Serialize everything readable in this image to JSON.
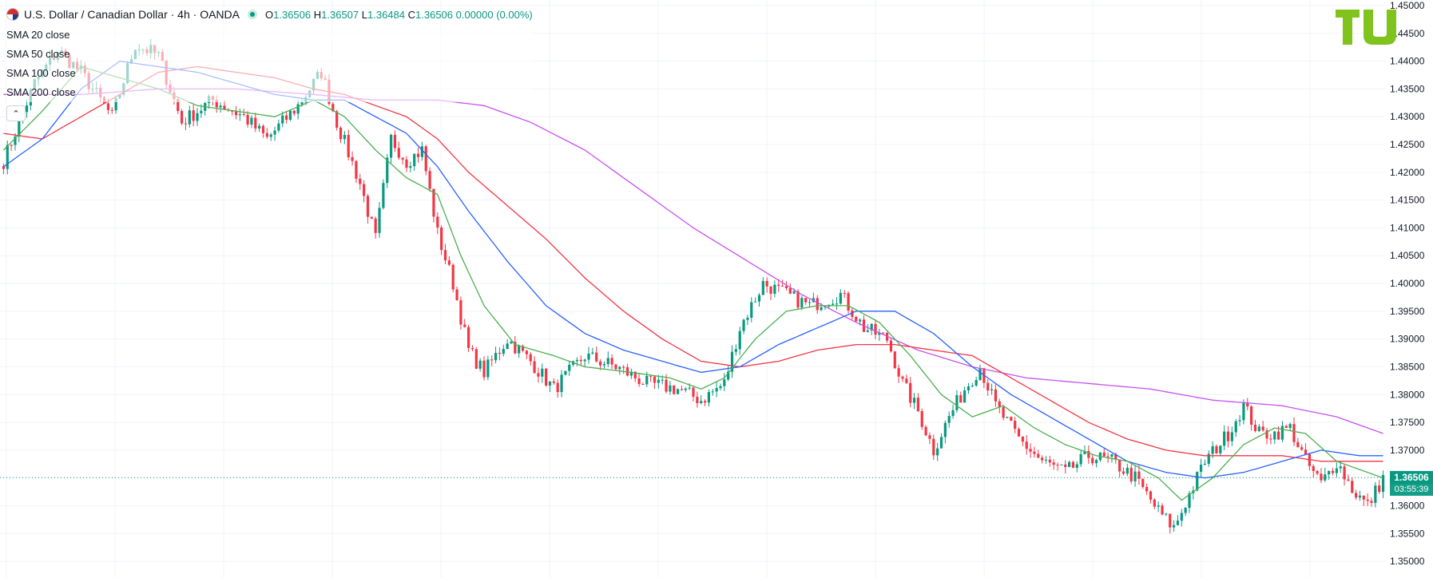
{
  "header": {
    "title": "U.S. Dollar / Canadian Dollar · 4h · OANDA",
    "ohlc": {
      "o_label": "O",
      "o_value": "1.36506",
      "h_label": "H",
      "h_value": "1.36507",
      "l_label": "L",
      "l_value": "1.36484",
      "c_label": "C",
      "c_value": "1.36506 0.00000 (0.00%)"
    }
  },
  "indicators": [
    {
      "label": "SMA 20 close",
      "color": "#4caf50"
    },
    {
      "label": "SMA 50 close",
      "color": "#2962ff"
    },
    {
      "label": "SMA 100 close",
      "color": "#f23645"
    },
    {
      "label": "SMA 200 close",
      "color": "#c850f0"
    }
  ],
  "icons": {
    "flag": "usd-cad-flag-icon",
    "live": "market-open-dot-icon",
    "collapse": "chevron-up-icon",
    "logo": "tradingview-logo-icon"
  },
  "last_price": {
    "price": "1.36506",
    "countdown": "03:55:39"
  },
  "colors": {
    "up": "#089981",
    "down": "#f23645",
    "grid": "#f0f3fa",
    "sma20": "#4caf50",
    "sma50": "#2962ff",
    "sma100": "#f23645",
    "sma200": "#c850f0",
    "logo": "#7fc31c"
  },
  "chart_data": {
    "type": "candlestick",
    "symbol": "USDCAD",
    "timeframe": "4h",
    "ylim": [
      1.347,
      1.451
    ],
    "y_ticks": [
      "1.35000",
      "1.35500",
      "1.36000",
      "1.36500",
      "1.37000",
      "1.37500",
      "1.38000",
      "1.38500",
      "1.39000",
      "1.39500",
      "1.40000",
      "1.40500",
      "1.41000",
      "1.41500",
      "1.42000",
      "1.42500",
      "1.43000",
      "1.43500",
      "1.44000",
      "1.44500",
      "1.45000"
    ],
    "close_anchors": [
      [
        0,
        1.422
      ],
      [
        8,
        1.436
      ],
      [
        14,
        1.442
      ],
      [
        20,
        1.438
      ],
      [
        28,
        1.43
      ],
      [
        34,
        1.443
      ],
      [
        40,
        1.441
      ],
      [
        46,
        1.429
      ],
      [
        54,
        1.433
      ],
      [
        62,
        1.43
      ],
      [
        68,
        1.426
      ],
      [
        76,
        1.432
      ],
      [
        82,
        1.438
      ],
      [
        86,
        1.429
      ],
      [
        92,
        1.418
      ],
      [
        96,
        1.408
      ],
      [
        100,
        1.426
      ],
      [
        104,
        1.422
      ],
      [
        108,
        1.424
      ],
      [
        112,
        1.409
      ],
      [
        116,
        1.4
      ],
      [
        120,
        1.388
      ],
      [
        124,
        1.384
      ],
      [
        130,
        1.39
      ],
      [
        136,
        1.386
      ],
      [
        142,
        1.381
      ],
      [
        150,
        1.387
      ],
      [
        158,
        1.385
      ],
      [
        166,
        1.382
      ],
      [
        174,
        1.381
      ],
      [
        180,
        1.379
      ],
      [
        186,
        1.382
      ],
      [
        190,
        1.392
      ],
      [
        196,
        1.4
      ],
      [
        202,
        1.398
      ],
      [
        208,
        1.396
      ],
      [
        216,
        1.398
      ],
      [
        222,
        1.392
      ],
      [
        228,
        1.39
      ],
      [
        232,
        1.382
      ],
      [
        236,
        1.377
      ],
      [
        240,
        1.37
      ],
      [
        244,
        1.376
      ],
      [
        248,
        1.381
      ],
      [
        252,
        1.385
      ],
      [
        256,
        1.378
      ],
      [
        262,
        1.372
      ],
      [
        268,
        1.368
      ],
      [
        274,
        1.366
      ],
      [
        280,
        1.369
      ],
      [
        286,
        1.368
      ],
      [
        292,
        1.365
      ],
      [
        298,
        1.359
      ],
      [
        302,
        1.356
      ],
      [
        306,
        1.362
      ],
      [
        310,
        1.368
      ],
      [
        316,
        1.373
      ],
      [
        320,
        1.378
      ],
      [
        324,
        1.373
      ],
      [
        328,
        1.373
      ],
      [
        332,
        1.374
      ],
      [
        336,
        1.368
      ],
      [
        340,
        1.364
      ],
      [
        344,
        1.368
      ],
      [
        348,
        1.363
      ],
      [
        352,
        1.36
      ],
      [
        356,
        1.365
      ]
    ],
    "sma20_anchors": [
      [
        0,
        1.424
      ],
      [
        10,
        1.431
      ],
      [
        20,
        1.439
      ],
      [
        30,
        1.437
      ],
      [
        40,
        1.435
      ],
      [
        50,
        1.432
      ],
      [
        60,
        1.431
      ],
      [
        70,
        1.43
      ],
      [
        80,
        1.433
      ],
      [
        88,
        1.43
      ],
      [
        96,
        1.424
      ],
      [
        104,
        1.419
      ],
      [
        112,
        1.416
      ],
      [
        118,
        1.405
      ],
      [
        124,
        1.396
      ],
      [
        132,
        1.389
      ],
      [
        142,
        1.387
      ],
      [
        150,
        1.385
      ],
      [
        162,
        1.384
      ],
      [
        172,
        1.383
      ],
      [
        180,
        1.381
      ],
      [
        186,
        1.383
      ],
      [
        194,
        1.39
      ],
      [
        202,
        1.395
      ],
      [
        210,
        1.396
      ],
      [
        218,
        1.396
      ],
      [
        226,
        1.393
      ],
      [
        234,
        1.387
      ],
      [
        242,
        1.38
      ],
      [
        250,
        1.376
      ],
      [
        258,
        1.378
      ],
      [
        266,
        1.374
      ],
      [
        274,
        1.371
      ],
      [
        282,
        1.369
      ],
      [
        290,
        1.368
      ],
      [
        298,
        1.365
      ],
      [
        304,
        1.361
      ],
      [
        312,
        1.365
      ],
      [
        320,
        1.371
      ],
      [
        328,
        1.374
      ],
      [
        336,
        1.373
      ],
      [
        344,
        1.368
      ],
      [
        352,
        1.366
      ],
      [
        356,
        1.365
      ]
    ],
    "sma50_anchors": [
      [
        0,
        1.421
      ],
      [
        10,
        1.426
      ],
      [
        20,
        1.435
      ],
      [
        30,
        1.44
      ],
      [
        40,
        1.439
      ],
      [
        50,
        1.438
      ],
      [
        60,
        1.436
      ],
      [
        70,
        1.434
      ],
      [
        80,
        1.433
      ],
      [
        88,
        1.433
      ],
      [
        96,
        1.43
      ],
      [
        104,
        1.427
      ],
      [
        112,
        1.421
      ],
      [
        120,
        1.413
      ],
      [
        130,
        1.404
      ],
      [
        140,
        1.396
      ],
      [
        150,
        1.391
      ],
      [
        160,
        1.388
      ],
      [
        170,
        1.386
      ],
      [
        180,
        1.384
      ],
      [
        190,
        1.385
      ],
      [
        200,
        1.389
      ],
      [
        210,
        1.392
      ],
      [
        220,
        1.395
      ],
      [
        230,
        1.395
      ],
      [
        240,
        1.391
      ],
      [
        250,
        1.385
      ],
      [
        260,
        1.38
      ],
      [
        270,
        1.376
      ],
      [
        280,
        1.372
      ],
      [
        290,
        1.368
      ],
      [
        300,
        1.366
      ],
      [
        310,
        1.365
      ],
      [
        320,
        1.366
      ],
      [
        330,
        1.368
      ],
      [
        340,
        1.37
      ],
      [
        350,
        1.369
      ],
      [
        356,
        1.369
      ]
    ],
    "sma100_anchors": [
      [
        0,
        1.427
      ],
      [
        10,
        1.426
      ],
      [
        20,
        1.43
      ],
      [
        30,
        1.434
      ],
      [
        40,
        1.438
      ],
      [
        50,
        1.439
      ],
      [
        60,
        1.438
      ],
      [
        70,
        1.437
      ],
      [
        80,
        1.435
      ],
      [
        88,
        1.434
      ],
      [
        96,
        1.432
      ],
      [
        104,
        1.43
      ],
      [
        112,
        1.426
      ],
      [
        120,
        1.42
      ],
      [
        130,
        1.414
      ],
      [
        140,
        1.408
      ],
      [
        150,
        1.401
      ],
      [
        160,
        1.395
      ],
      [
        170,
        1.39
      ],
      [
        180,
        1.386
      ],
      [
        190,
        1.385
      ],
      [
        200,
        1.386
      ],
      [
        210,
        1.388
      ],
      [
        220,
        1.389
      ],
      [
        230,
        1.389
      ],
      [
        240,
        1.388
      ],
      [
        250,
        1.387
      ],
      [
        260,
        1.383
      ],
      [
        270,
        1.379
      ],
      [
        280,
        1.375
      ],
      [
        290,
        1.372
      ],
      [
        300,
        1.37
      ],
      [
        310,
        1.369
      ],
      [
        320,
        1.369
      ],
      [
        330,
        1.369
      ],
      [
        340,
        1.368
      ],
      [
        350,
        1.368
      ],
      [
        356,
        1.368
      ]
    ],
    "sma200_anchors": [
      [
        0,
        1.434
      ],
      [
        20,
        1.434
      ],
      [
        40,
        1.435
      ],
      [
        60,
        1.435
      ],
      [
        80,
        1.434
      ],
      [
        96,
        1.433
      ],
      [
        112,
        1.433
      ],
      [
        124,
        1.432
      ],
      [
        136,
        1.429
      ],
      [
        150,
        1.424
      ],
      [
        164,
        1.417
      ],
      [
        178,
        1.41
      ],
      [
        192,
        1.404
      ],
      [
        206,
        1.398
      ],
      [
        220,
        1.393
      ],
      [
        236,
        1.388
      ],
      [
        250,
        1.385
      ],
      [
        264,
        1.383
      ],
      [
        280,
        1.382
      ],
      [
        296,
        1.381
      ],
      [
        312,
        1.379
      ],
      [
        330,
        1.378
      ],
      [
        344,
        1.376
      ],
      [
        356,
        1.373
      ]
    ]
  }
}
